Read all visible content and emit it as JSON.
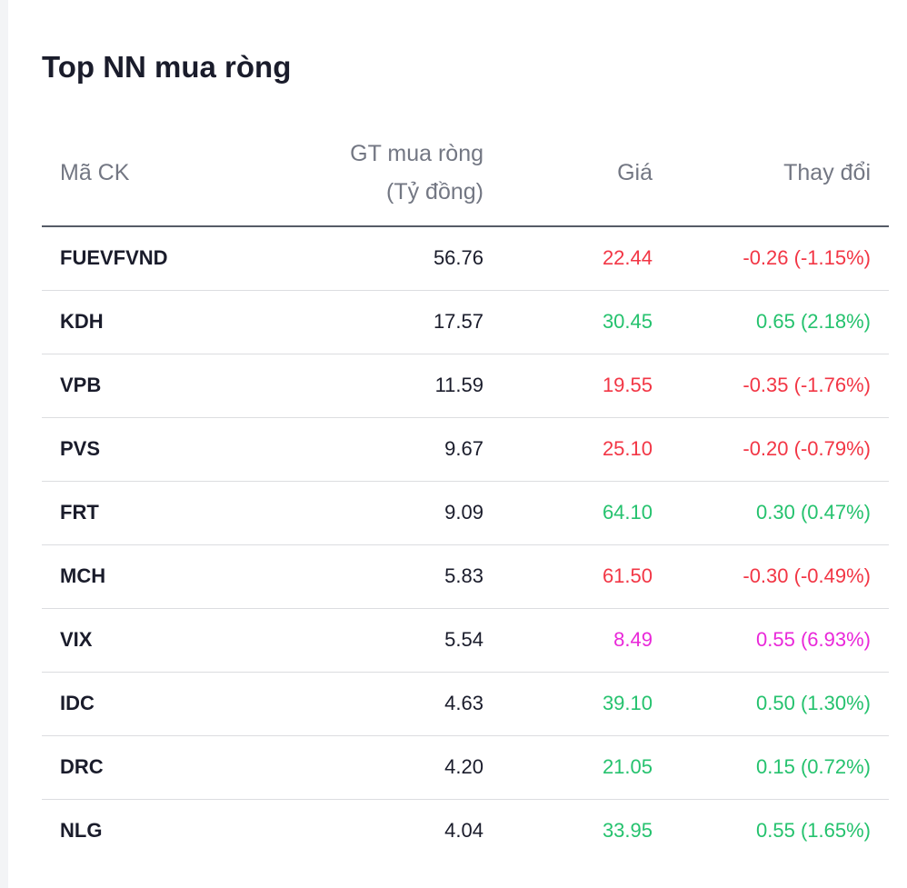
{
  "title": "Top NN mua ròng",
  "table": {
    "headers": {
      "symbol": "Mã CK",
      "net_value_line1": "GT mua ròng",
      "net_value_line2": "(Tỷ đồng)",
      "price": "Giá",
      "change": "Thay đổi"
    },
    "status_colors": {
      "up": "#25c26e",
      "down": "#f23645",
      "ceiling": "#e928d9"
    },
    "rows": [
      {
        "symbol": "FUEVFVND",
        "net_value": "56.76",
        "price": "22.44",
        "change": "-0.26 (-1.15%)",
        "status": "down"
      },
      {
        "symbol": "KDH",
        "net_value": "17.57",
        "price": "30.45",
        "change": "0.65 (2.18%)",
        "status": "up"
      },
      {
        "symbol": "VPB",
        "net_value": "11.59",
        "price": "19.55",
        "change": "-0.35 (-1.76%)",
        "status": "down"
      },
      {
        "symbol": "PVS",
        "net_value": "9.67",
        "price": "25.10",
        "change": "-0.20 (-0.79%)",
        "status": "down"
      },
      {
        "symbol": "FRT",
        "net_value": "9.09",
        "price": "64.10",
        "change": "0.30 (0.47%)",
        "status": "up"
      },
      {
        "symbol": "MCH",
        "net_value": "5.83",
        "price": "61.50",
        "change": "-0.30 (-0.49%)",
        "status": "down"
      },
      {
        "symbol": "VIX",
        "net_value": "5.54",
        "price": "8.49",
        "change": "0.55 (6.93%)",
        "status": "ceiling"
      },
      {
        "symbol": "IDC",
        "net_value": "4.63",
        "price": "39.10",
        "change": "0.50 (1.30%)",
        "status": "up"
      },
      {
        "symbol": "DRC",
        "net_value": "4.20",
        "price": "21.05",
        "change": "0.15 (0.72%)",
        "status": "up"
      },
      {
        "symbol": "NLG",
        "net_value": "4.04",
        "price": "33.95",
        "change": "0.55 (1.65%)",
        "status": "up"
      }
    ]
  }
}
